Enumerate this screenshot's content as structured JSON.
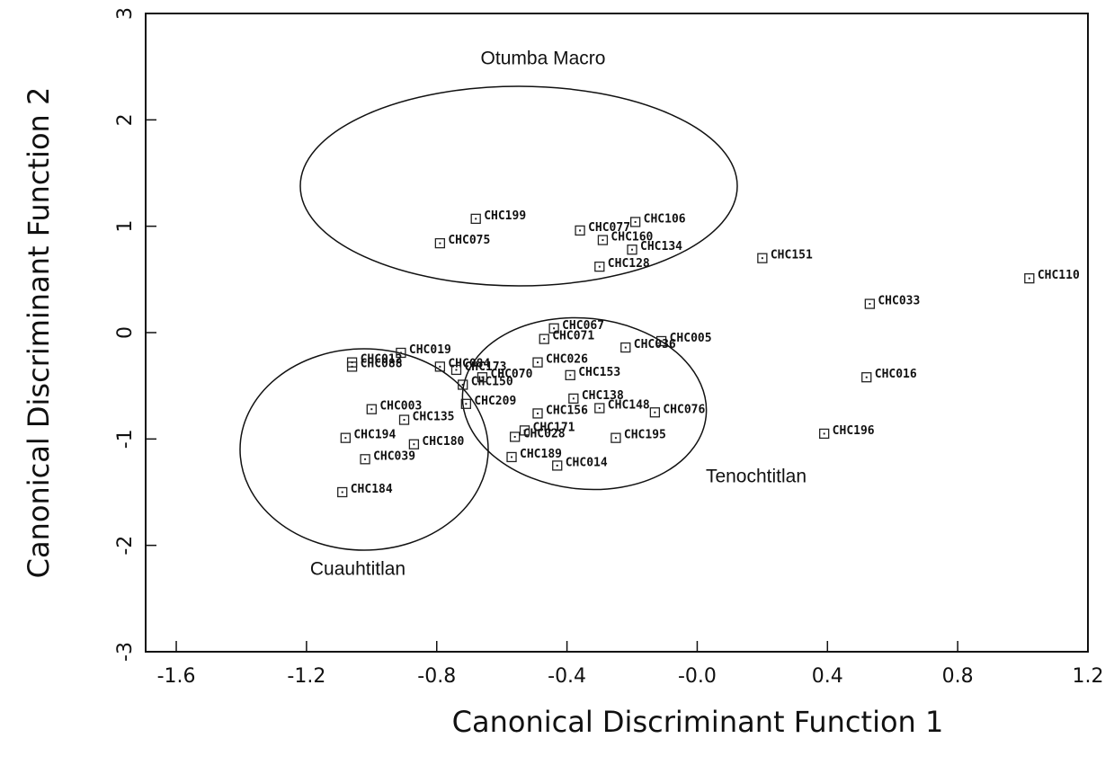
{
  "chart_data": {
    "type": "scatter",
    "xlabel": "Canonical Discriminant Function 1",
    "ylabel": "Canonical Discriminant Function 2",
    "annotations": [
      "Otumba Macro",
      "Tenochtitlan",
      "Cuauhtitlan"
    ],
    "point_labels": [
      "CHC199",
      "CHC075",
      "CHC077",
      "CHC106",
      "CHC160",
      "CHC134",
      "CHC128",
      "CHC151",
      "CHC110",
      "CHC033",
      "CHC016",
      "CHC196",
      "CHC076",
      "CHC195",
      "CHC014",
      "CHC189",
      "CHC028",
      "CHC171",
      "CHC138",
      "CHC148",
      "CHC156",
      "CHC153",
      "CHC067",
      "CHC071",
      "CHC005",
      "CHC036",
      "CHC019",
      "CHC012",
      "CHC088",
      "CHC084",
      "CHC173",
      "CHC150",
      "CHC070",
      "CHC026",
      "CHC003",
      "CHC135",
      "CHC194",
      "CHC180",
      "CHC039",
      "CHC184",
      "CHC209"
    ],
    "x": [
      -0.68,
      -0.79,
      -0.36,
      -0.19,
      -0.29,
      -0.2,
      -0.3,
      0.2,
      1.02,
      0.53,
      0.52,
      0.39,
      -0.13,
      -0.25,
      -0.43,
      -0.57,
      -0.56,
      -0.53,
      -0.38,
      -0.3,
      -0.49,
      -0.39,
      -0.44,
      -0.47,
      -0.11,
      -0.22,
      -0.91,
      -1.06,
      -1.06,
      -0.79,
      -0.74,
      -0.72,
      -0.66,
      -0.49,
      -1.0,
      -0.9,
      -1.08,
      -0.87,
      -1.02,
      -1.09,
      -0.71
    ],
    "y": [
      1.07,
      0.84,
      0.96,
      1.04,
      0.87,
      0.78,
      0.62,
      0.7,
      0.51,
      0.27,
      -0.42,
      -0.95,
      -0.75,
      -0.99,
      -1.25,
      -1.17,
      -0.98,
      -0.92,
      -0.62,
      -0.71,
      -0.76,
      -0.4,
      0.04,
      -0.06,
      -0.08,
      -0.14,
      -0.19,
      -0.28,
      -0.32,
      -0.32,
      -0.35,
      -0.49,
      -0.42,
      -0.28,
      -0.72,
      -0.82,
      -0.99,
      -1.05,
      -1.19,
      -1.5,
      -0.67
    ],
    "xlim": [
      -1.694,
      1.2
    ],
    "ylim": [
      -3,
      3
    ],
    "xticks": [
      -1.6,
      -1.2,
      -0.8,
      -0.4,
      {
        "value": 0,
        "label": "-0.0"
      },
      0.4,
      0.8,
      1.2
    ],
    "yticks": [
      -3,
      -2,
      -1,
      0,
      1,
      2,
      3
    ],
    "color": "#222"
  }
}
